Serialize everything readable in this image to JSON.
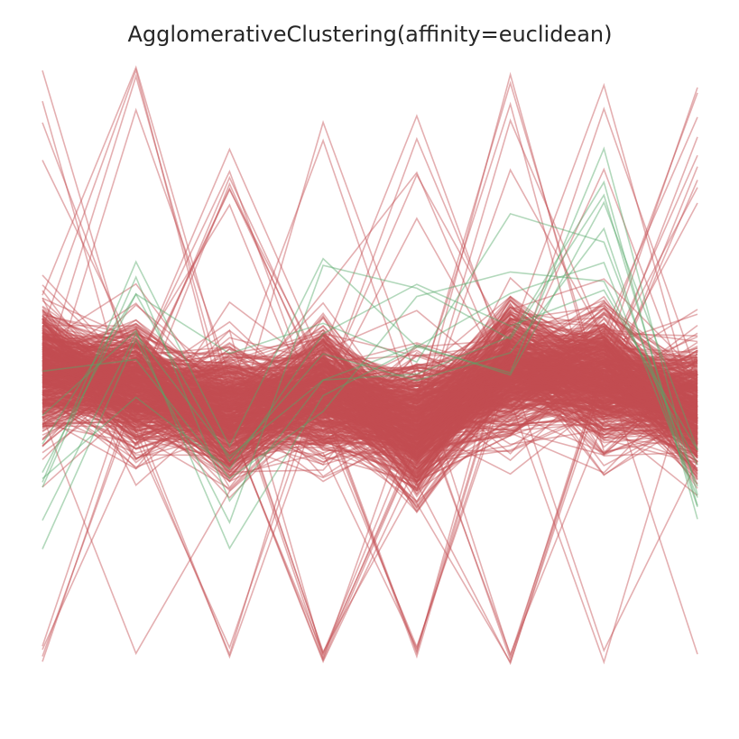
{
  "chart_data": {
    "type": "line",
    "subtype": "parallel-coordinates",
    "title": "AgglomerativeClustering(affinity=euclidean)",
    "axes_visible": false,
    "grid": false,
    "legend": "none",
    "n_axes": 8,
    "ylim": [
      -0.4,
      1.45
    ],
    "series_colors": {
      "0": "#C44E52",
      "1": "#55A868"
    },
    "line_alpha": 0.45,
    "cluster_centers": {
      "0": [
        0.52,
        0.47,
        0.4,
        0.46,
        0.36,
        0.52,
        0.5,
        0.41
      ],
      "1": [
        0.2,
        0.63,
        0.2,
        0.6,
        0.58,
        0.7,
        0.95,
        0.2
      ]
    },
    "series_counts": {
      "0": 600,
      "1": 9
    }
  }
}
